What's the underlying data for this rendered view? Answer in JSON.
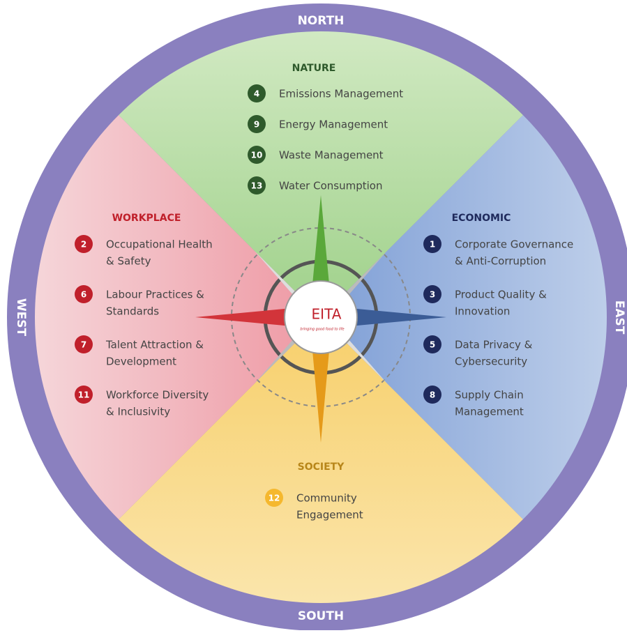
{
  "directions": {
    "north": "NORTH",
    "south": "SOUTH",
    "west": "WEST",
    "east": "EAST"
  },
  "logo": {
    "name": "EITA",
    "tagline": "bringing good food to life"
  },
  "quadrants": [
    {
      "title": "NATURE",
      "items": [
        {
          "number": "4",
          "lines": [
            "Emissions Management"
          ]
        },
        {
          "number": "9",
          "lines": [
            "Energy Management"
          ]
        },
        {
          "number": "10",
          "lines": [
            "Waste Management"
          ]
        },
        {
          "number": "13",
          "lines": [
            "Water Consumption"
          ]
        }
      ]
    },
    {
      "title": "WORKPLACE",
      "items": [
        {
          "number": "2",
          "lines": [
            "Occupational Health",
            "& Safety"
          ]
        },
        {
          "number": "6",
          "lines": [
            "Labour Practices &",
            "Standards"
          ]
        },
        {
          "number": "7",
          "lines": [
            "Talent Attraction &",
            "Development"
          ]
        },
        {
          "number": "11",
          "lines": [
            "Workforce Diversity",
            "& Inclusivity"
          ]
        }
      ]
    },
    {
      "title": "ECONOMIC",
      "items": [
        {
          "number": "1",
          "lines": [
            "Corporate Governance",
            "& Anti-Corruption"
          ]
        },
        {
          "number": "3",
          "lines": [
            "Product Quality &",
            "Innovation"
          ]
        },
        {
          "number": "5",
          "lines": [
            "Data Privacy &",
            "Cybersecurity"
          ]
        },
        {
          "number": "8",
          "lines": [
            "Supply Chain",
            "Management"
          ]
        }
      ]
    },
    {
      "title": "SOCIETY",
      "items": [
        {
          "number": "12",
          "lines": [
            "Community",
            "Engagement"
          ]
        }
      ]
    }
  ]
}
